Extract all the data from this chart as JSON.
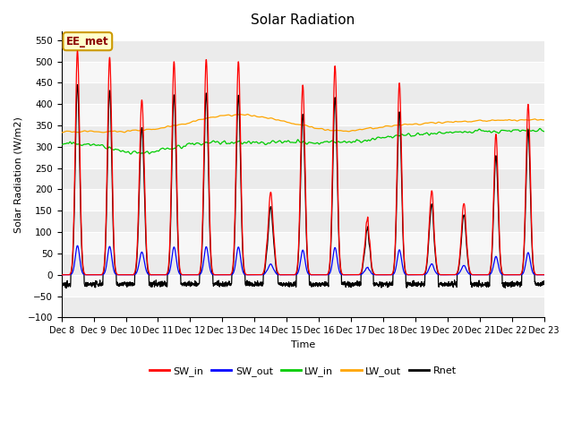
{
  "title": "Solar Radiation",
  "ylabel": "Solar Radiation (W/m2)",
  "xlabel": "Time",
  "ylim": [
    -100,
    570
  ],
  "yticks": [
    -100,
    -50,
    0,
    50,
    100,
    150,
    200,
    250,
    300,
    350,
    400,
    450,
    500,
    550
  ],
  "bg_color": "#ffffff",
  "plot_bg_color": "#ffffff",
  "legend_items": [
    "SW_in",
    "SW_out",
    "LW_in",
    "LW_out",
    "Rnet"
  ],
  "legend_colors": [
    "#ff0000",
    "#0000ff",
    "#00cc00",
    "#ffa500",
    "#000000"
  ],
  "annotation_text": "EE_met",
  "annotation_bg": "#ffffcc",
  "annotation_border": "#cc9900",
  "n_days": 15,
  "start_day": 8
}
